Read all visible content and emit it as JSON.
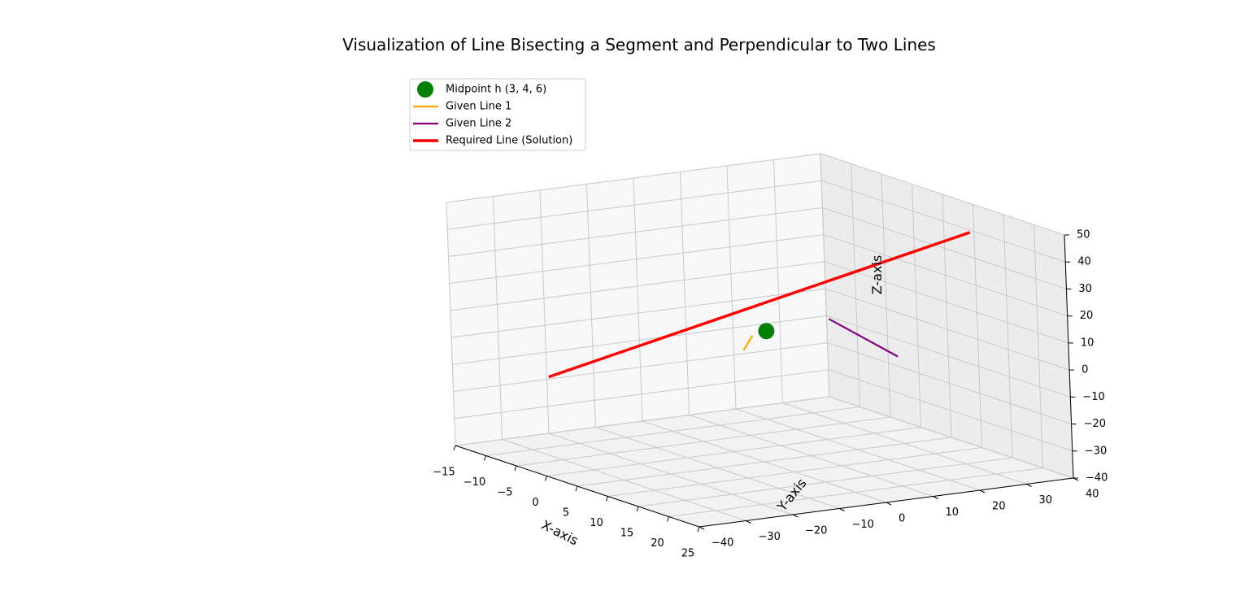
{
  "chart_data": {
    "type": "line",
    "title": "Visualization of Line Bisecting a Segment and Perpendicular to Two Lines",
    "xlabel": "X-axis",
    "ylabel": "Y-axis",
    "zlabel": "Z-axis",
    "xlim": [
      -15,
      25
    ],
    "ylim": [
      -40,
      40
    ],
    "zlim": [
      -40,
      50
    ],
    "x_ticks": [
      "−15",
      "−10",
      "−5",
      "0",
      "5",
      "10",
      "15",
      "20",
      "25"
    ],
    "y_ticks": [
      "−40",
      "−30",
      "−20",
      "−10",
      "0",
      "10",
      "20",
      "30",
      "40"
    ],
    "z_ticks": [
      "−40",
      "−30",
      "−20",
      "−10",
      "0",
      "10",
      "20",
      "30",
      "40",
      "50"
    ],
    "grid": true,
    "legend_position": "top-left",
    "legend": [
      {
        "label": "Midpoint h (3, 4, 6)",
        "color": "#008000",
        "kind": "marker"
      },
      {
        "label": "Given Line 1",
        "color": "#FFA500",
        "kind": "line"
      },
      {
        "label": "Given Line 2",
        "color": "#800080",
        "kind": "line"
      },
      {
        "label": "Required Line (Solution)",
        "color": "#FF0000",
        "kind": "line"
      }
    ],
    "midpoint": {
      "x": 3,
      "y": 4,
      "z": 6
    },
    "series": [
      {
        "name": "Given Line 1",
        "color": "#FFA500",
        "points": [
          [
            3,
            -1,
            0
          ],
          [
            3,
            1,
            5
          ]
        ]
      },
      {
        "name": "Given Line 2",
        "color": "#800080",
        "points": [
          [
            15,
            2,
            20
          ],
          [
            20,
            10,
            8
          ]
        ]
      },
      {
        "name": "Required Line (Solution)",
        "color": "#FF0000",
        "points": [
          [
            -10,
            -26,
            -14
          ],
          [
            14,
            34,
            44
          ]
        ]
      }
    ]
  }
}
